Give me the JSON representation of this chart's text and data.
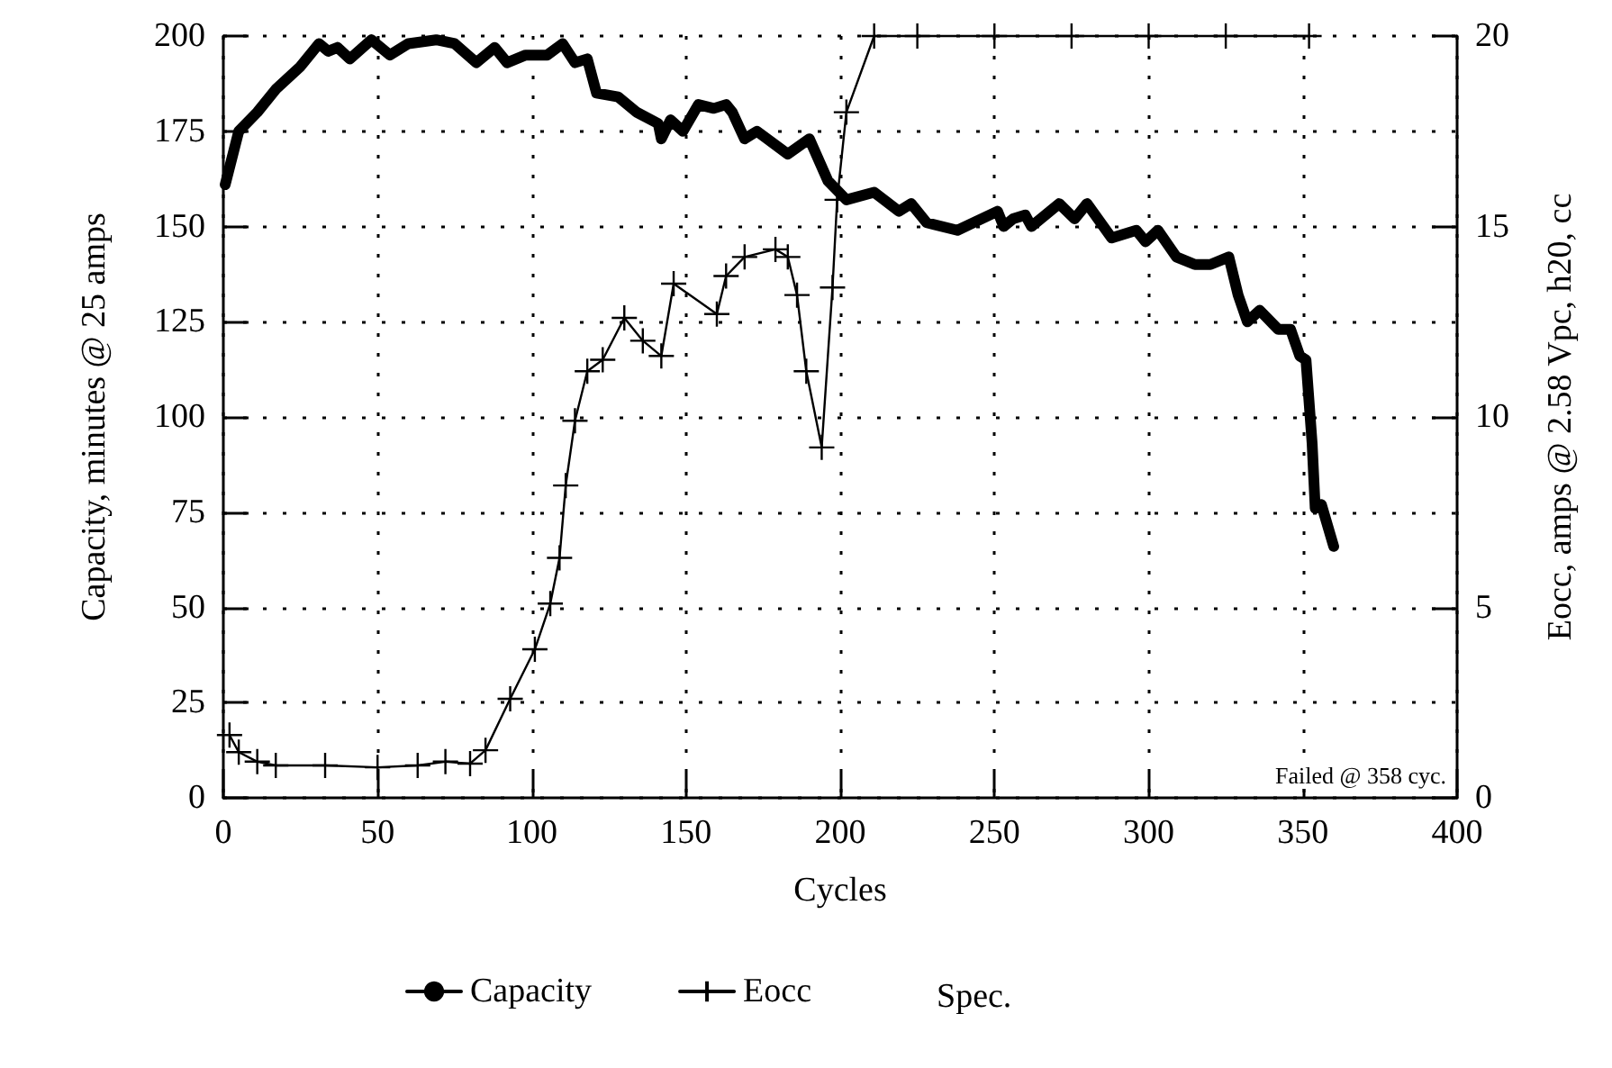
{
  "chart_data": {
    "type": "line",
    "xlabel": "Cycles",
    "ylabel": "Capacity, minutes @ 25 amps",
    "y2label": "Eocc, amps @ 2.58 Vpc, h20, cc",
    "xlim": [
      0,
      400
    ],
    "xticks": [
      0,
      50,
      100,
      150,
      200,
      250,
      300,
      350,
      400
    ],
    "ylim": [
      0,
      200
    ],
    "yticks": [
      0,
      25,
      50,
      75,
      100,
      125,
      150,
      175,
      200
    ],
    "y2lim": [
      0,
      20
    ],
    "y2ticks": [
      0,
      5,
      10,
      15,
      20
    ],
    "grid": true,
    "legend": "bottom",
    "annotations": [
      "Failed @ 358 cyc.",
      "Spec."
    ],
    "series": [
      {
        "name": "Capacity",
        "color": "#000000",
        "marker": "none",
        "x": [
          0.6,
          5,
          11,
          17,
          25,
          31,
          34,
          37,
          41,
          48,
          54,
          60,
          69,
          75,
          82,
          88,
          92,
          98,
          105,
          110,
          114,
          118,
          121,
          128,
          134,
          141,
          142,
          145,
          149,
          154,
          159,
          163,
          165,
          169,
          173,
          183,
          190,
          196,
          202,
          211,
          219,
          223,
          228,
          238,
          251,
          253,
          256,
          260,
          262,
          271,
          276,
          280,
          288,
          296,
          299,
          303,
          309,
          315,
          320,
          326,
          329,
          332,
          336,
          342,
          346,
          349,
          351,
          353,
          354,
          356,
          360
        ],
        "values": [
          161,
          175,
          180,
          186,
          192,
          198,
          196,
          197,
          194,
          199,
          195,
          198,
          199,
          198,
          193,
          197,
          193,
          195,
          195,
          198,
          193,
          194,
          185,
          184,
          180,
          177,
          173,
          178,
          175,
          182,
          181,
          182,
          180,
          173,
          175,
          169,
          173,
          162,
          157,
          159,
          154,
          156,
          151,
          149,
          154,
          150,
          152,
          153,
          150,
          156,
          152,
          156,
          147,
          149,
          146,
          149,
          142,
          140,
          140,
          142,
          132,
          125,
          128,
          123,
          123,
          116,
          115,
          93,
          76,
          77,
          66
        ]
      },
      {
        "name": "Eocc",
        "color": "#000000",
        "axis": "y2",
        "marker": "cross",
        "x": [
          2,
          5,
          11,
          17,
          33,
          50,
          63,
          72,
          80,
          85,
          93,
          101,
          106,
          109,
          111,
          114,
          118,
          123,
          130,
          136,
          142,
          146,
          160,
          163,
          169,
          179,
          183,
          186,
          189,
          194,
          197.5,
          199,
          202,
          211,
          225,
          250,
          275,
          300,
          325,
          352
        ],
        "values": [
          1.65,
          1.2,
          0.95,
          0.85,
          0.85,
          0.8,
          0.85,
          0.95,
          0.9,
          1.25,
          2.6,
          3.9,
          5.1,
          6.3,
          8.2,
          9.9,
          11.2,
          11.5,
          12.6,
          12.0,
          11.6,
          13.5,
          12.7,
          13.7,
          14.2,
          14.4,
          14.2,
          13.2,
          11.2,
          9.2,
          13.4,
          15.7,
          18.0,
          20,
          20,
          20,
          20,
          20,
          20,
          20
        ]
      }
    ]
  }
}
